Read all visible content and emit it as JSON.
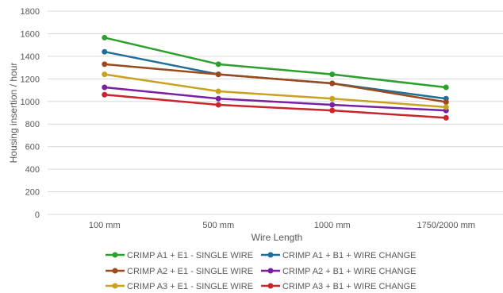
{
  "chart_data": {
    "type": "line",
    "title": "",
    "xlabel": "Wire Length",
    "ylabel": "Housing insertion / hour",
    "ylim": [
      0,
      1800
    ],
    "yticks": [
      0,
      200,
      400,
      600,
      800,
      1000,
      1200,
      1400,
      1600,
      1800
    ],
    "grid": "horizontal",
    "legend_position": "bottom",
    "categories": [
      "100 mm",
      "500 mm",
      "1000 mm",
      "1750/2000 mm"
    ],
    "series": [
      {
        "name": "CRIMP A1 + E1 - SINGLE WIRE",
        "color": "#2ca02c",
        "values": [
          1565,
          1330,
          1240,
          1125
        ]
      },
      {
        "name": "CRIMP A1 + B1 + WIRE CHANGE",
        "color": "#1f6e9c",
        "values": [
          1440,
          1240,
          1160,
          1025
        ]
      },
      {
        "name": "CRIMP A2 + E1 - SINGLE WIRE",
        "color": "#9c4a1c",
        "values": [
          1330,
          1240,
          1160,
          995
        ]
      },
      {
        "name": "CRIMP A2 + B1 + WIRE CHANGE",
        "color": "#7a1fa2",
        "values": [
          1125,
          1025,
          970,
          920
        ]
      },
      {
        "name": "CRIMP A3 + E1 - SINGLE WIRE",
        "color": "#c9a21f",
        "values": [
          1240,
          1090,
          1025,
          950
        ]
      },
      {
        "name": "CRIMP A3 + B1 + WIRE CHANGE",
        "color": "#c8262b",
        "values": [
          1060,
          970,
          920,
          855
        ]
      }
    ]
  }
}
